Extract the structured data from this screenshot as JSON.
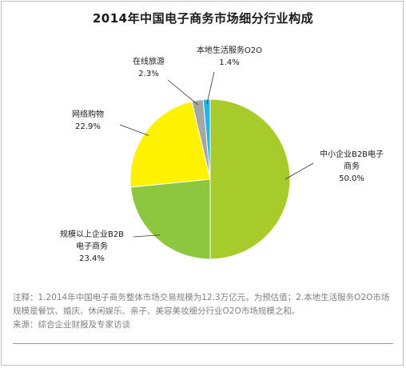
{
  "chart_data": {
    "type": "pie",
    "title": "2014年中国电子商务市场细分行业构成",
    "categories": [
      "中小企业B2B电子商务",
      "规模以上企业B2B电子商务",
      "网络购物",
      "在线旅游",
      "本地生活服务O2O"
    ],
    "values": [
      50.0,
      23.4,
      22.9,
      2.3,
      1.4
    ],
    "unit": "%",
    "colors": [
      "#a6cb2a",
      "#8dc63f",
      "#fff200",
      "#a6a6a6",
      "#1fb6e8"
    ],
    "labels": [
      {
        "lines": [
          "中小企业B2B电子",
          "商务"
        ],
        "value": "50.0%"
      },
      {
        "lines": [
          "规模以上企业B2B",
          "电子商务"
        ],
        "value": "23.4%"
      },
      {
        "lines": [
          "网络购物"
        ],
        "value": "22.9%"
      },
      {
        "lines": [
          "在线旅游"
        ],
        "value": "2.3%"
      },
      {
        "lines": [
          "本地生活服务O2O"
        ],
        "value": "1.4%"
      }
    ]
  },
  "notes": {
    "line1": "注释：1.2014年中国电子商务整体市场交易规模为12.3万亿元，为预估值；2.本地生活服务O2O市场",
    "line2": "规模是餐饮、婚庆、休闲娱乐、亲子、美容美妆细分行业O2O市场规模之和。",
    "source": "来源：综合企业财报及专家访谈"
  }
}
